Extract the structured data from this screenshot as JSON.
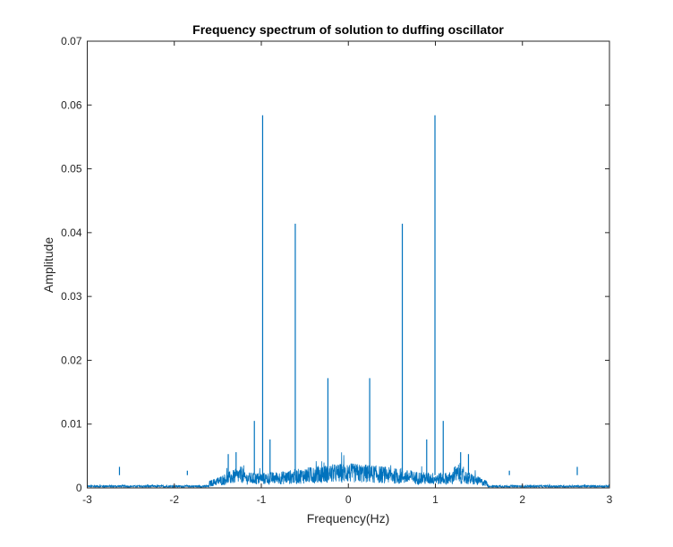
{
  "chart_data": {
    "type": "line",
    "title": "Frequency spectrum of solution to duffing oscillator",
    "xlabel": "Frequency(Hz)",
    "ylabel": "Amplitude",
    "xlim": [
      -3,
      3
    ],
    "ylim": [
      0,
      0.07
    ],
    "xticks": [
      -3,
      -2,
      -1,
      0,
      1,
      2,
      3
    ],
    "xtick_labels": [
      "-3",
      "-2",
      "-1",
      "0",
      "1",
      "2",
      "3"
    ],
    "yticks": [
      0,
      0.01,
      0.02,
      0.03,
      0.04,
      0.05,
      0.06,
      0.07
    ],
    "ytick_labels": [
      "0",
      "0.01",
      "0.02",
      "0.03",
      "0.04",
      "0.05",
      "0.06",
      "0.07"
    ],
    "grid": false,
    "line_color": "#0072BD",
    "noise_floor": {
      "description_level": 0.003,
      "band": [
        -1.5,
        1.5
      ]
    },
    "peaks": [
      {
        "x": -2.63,
        "y": 0.0033
      },
      {
        "x": -1.85,
        "y": 0.0027
      },
      {
        "x": -1.38,
        "y": 0.0053
      },
      {
        "x": -1.29,
        "y": 0.0056
      },
      {
        "x": -1.08,
        "y": 0.0105
      },
      {
        "x": -0.985,
        "y": 0.0584
      },
      {
        "x": -0.9,
        "y": 0.0076
      },
      {
        "x": -0.61,
        "y": 0.0414
      },
      {
        "x": -0.235,
        "y": 0.0172
      },
      {
        "x": 0.245,
        "y": 0.0172
      },
      {
        "x": 0.62,
        "y": 0.0414
      },
      {
        "x": 0.9,
        "y": 0.0076
      },
      {
        "x": 0.995,
        "y": 0.0584
      },
      {
        "x": 1.09,
        "y": 0.0105
      },
      {
        "x": 1.29,
        "y": 0.0056
      },
      {
        "x": 1.38,
        "y": 0.0053
      },
      {
        "x": 1.85,
        "y": 0.0027
      },
      {
        "x": 2.63,
        "y": 0.0033
      }
    ]
  }
}
